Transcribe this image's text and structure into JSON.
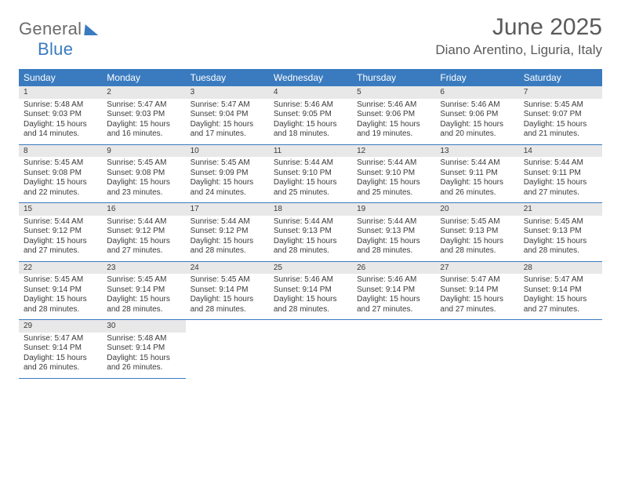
{
  "logo": {
    "general": "General",
    "blue": "Blue"
  },
  "header": {
    "title": "June 2025",
    "location": "Diano Arentino, Liguria, Italy"
  },
  "colors": {
    "header_bg": "#3a7bbf",
    "header_text": "#ffffff",
    "daynum_bg": "#e8e8e8",
    "cell_border": "#3a7bbf",
    "text": "#3a3a3a",
    "title_text": "#5a5a5a"
  },
  "typography": {
    "title_fontsize": 30,
    "location_fontsize": 17,
    "dayname_fontsize": 12,
    "daynum_fontsize": 11,
    "body_fontsize": 10
  },
  "layout": {
    "columns": 7,
    "rows": 5
  },
  "daynames": [
    "Sunday",
    "Monday",
    "Tuesday",
    "Wednesday",
    "Thursday",
    "Friday",
    "Saturday"
  ],
  "days": [
    {
      "n": "1",
      "sr": "5:48 AM",
      "ss": "9:03 PM",
      "dl": "15 hours and 14 minutes."
    },
    {
      "n": "2",
      "sr": "5:47 AM",
      "ss": "9:03 PM",
      "dl": "15 hours and 16 minutes."
    },
    {
      "n": "3",
      "sr": "5:47 AM",
      "ss": "9:04 PM",
      "dl": "15 hours and 17 minutes."
    },
    {
      "n": "4",
      "sr": "5:46 AM",
      "ss": "9:05 PM",
      "dl": "15 hours and 18 minutes."
    },
    {
      "n": "5",
      "sr": "5:46 AM",
      "ss": "9:06 PM",
      "dl": "15 hours and 19 minutes."
    },
    {
      "n": "6",
      "sr": "5:46 AM",
      "ss": "9:06 PM",
      "dl": "15 hours and 20 minutes."
    },
    {
      "n": "7",
      "sr": "5:45 AM",
      "ss": "9:07 PM",
      "dl": "15 hours and 21 minutes."
    },
    {
      "n": "8",
      "sr": "5:45 AM",
      "ss": "9:08 PM",
      "dl": "15 hours and 22 minutes."
    },
    {
      "n": "9",
      "sr": "5:45 AM",
      "ss": "9:08 PM",
      "dl": "15 hours and 23 minutes."
    },
    {
      "n": "10",
      "sr": "5:45 AM",
      "ss": "9:09 PM",
      "dl": "15 hours and 24 minutes."
    },
    {
      "n": "11",
      "sr": "5:44 AM",
      "ss": "9:10 PM",
      "dl": "15 hours and 25 minutes."
    },
    {
      "n": "12",
      "sr": "5:44 AM",
      "ss": "9:10 PM",
      "dl": "15 hours and 25 minutes."
    },
    {
      "n": "13",
      "sr": "5:44 AM",
      "ss": "9:11 PM",
      "dl": "15 hours and 26 minutes."
    },
    {
      "n": "14",
      "sr": "5:44 AM",
      "ss": "9:11 PM",
      "dl": "15 hours and 27 minutes."
    },
    {
      "n": "15",
      "sr": "5:44 AM",
      "ss": "9:12 PM",
      "dl": "15 hours and 27 minutes."
    },
    {
      "n": "16",
      "sr": "5:44 AM",
      "ss": "9:12 PM",
      "dl": "15 hours and 27 minutes."
    },
    {
      "n": "17",
      "sr": "5:44 AM",
      "ss": "9:12 PM",
      "dl": "15 hours and 28 minutes."
    },
    {
      "n": "18",
      "sr": "5:44 AM",
      "ss": "9:13 PM",
      "dl": "15 hours and 28 minutes."
    },
    {
      "n": "19",
      "sr": "5:44 AM",
      "ss": "9:13 PM",
      "dl": "15 hours and 28 minutes."
    },
    {
      "n": "20",
      "sr": "5:45 AM",
      "ss": "9:13 PM",
      "dl": "15 hours and 28 minutes."
    },
    {
      "n": "21",
      "sr": "5:45 AM",
      "ss": "9:13 PM",
      "dl": "15 hours and 28 minutes."
    },
    {
      "n": "22",
      "sr": "5:45 AM",
      "ss": "9:14 PM",
      "dl": "15 hours and 28 minutes."
    },
    {
      "n": "23",
      "sr": "5:45 AM",
      "ss": "9:14 PM",
      "dl": "15 hours and 28 minutes."
    },
    {
      "n": "24",
      "sr": "5:45 AM",
      "ss": "9:14 PM",
      "dl": "15 hours and 28 minutes."
    },
    {
      "n": "25",
      "sr": "5:46 AM",
      "ss": "9:14 PM",
      "dl": "15 hours and 28 minutes."
    },
    {
      "n": "26",
      "sr": "5:46 AM",
      "ss": "9:14 PM",
      "dl": "15 hours and 27 minutes."
    },
    {
      "n": "27",
      "sr": "5:47 AM",
      "ss": "9:14 PM",
      "dl": "15 hours and 27 minutes."
    },
    {
      "n": "28",
      "sr": "5:47 AM",
      "ss": "9:14 PM",
      "dl": "15 hours and 27 minutes."
    },
    {
      "n": "29",
      "sr": "5:47 AM",
      "ss": "9:14 PM",
      "dl": "15 hours and 26 minutes."
    },
    {
      "n": "30",
      "sr": "5:48 AM",
      "ss": "9:14 PM",
      "dl": "15 hours and 26 minutes."
    }
  ],
  "labels": {
    "sunrise": "Sunrise: ",
    "sunset": "Sunset: ",
    "daylight": "Daylight: "
  }
}
